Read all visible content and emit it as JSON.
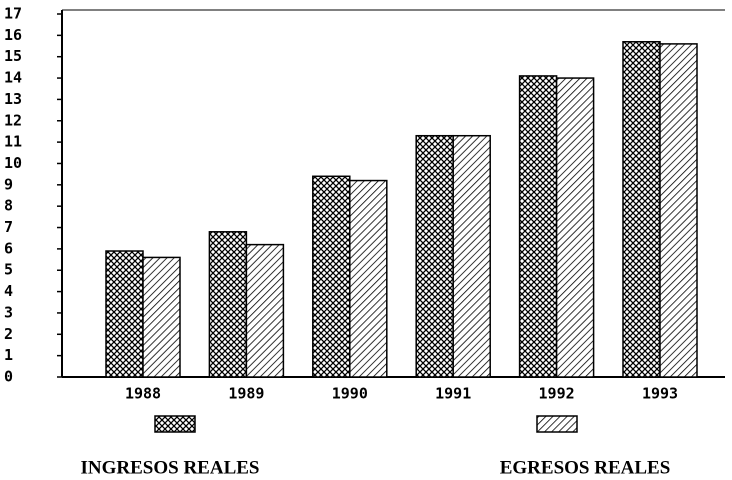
{
  "chart_data": {
    "type": "bar",
    "categories": [
      "1988",
      "1989",
      "1990",
      "1991",
      "1992",
      "1993"
    ],
    "series": [
      {
        "name": "INGRESOS REALES",
        "color": "#000000",
        "values": [
          5.9,
          6.8,
          9.4,
          11.3,
          14.1,
          15.7
        ]
      },
      {
        "name": "EGRESOS REALES",
        "color": "#000000",
        "values": [
          5.6,
          6.2,
          9.2,
          11.3,
          14.0,
          15.6
        ]
      }
    ],
    "ylim": [
      0,
      17
    ],
    "yticks": [
      0,
      1,
      2,
      3,
      4,
      5,
      6,
      7,
      8,
      9,
      10,
      11,
      12,
      13,
      14,
      15,
      16,
      17
    ],
    "grid": false,
    "legend": "bottom"
  }
}
